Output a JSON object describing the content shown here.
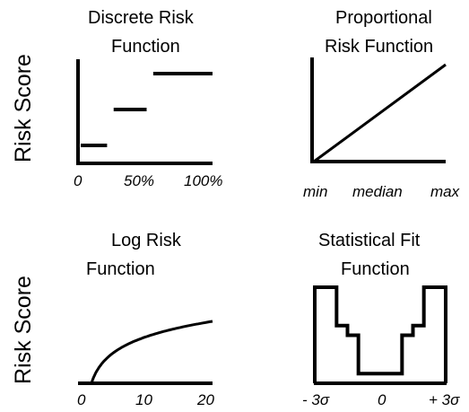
{
  "y_axis_label": "Risk Score",
  "panels": {
    "discrete": {
      "title_line1": "Discrete Risk",
      "title_line2": "Function",
      "ticks": [
        "0",
        "50%",
        "100%"
      ],
      "chart_data": {
        "type": "step",
        "segments": [
          {
            "x_start": 0,
            "x_end": 20,
            "level": 1
          },
          {
            "x_start": 25,
            "x_end": 50,
            "level": 3
          },
          {
            "x_start": 55,
            "x_end": 100,
            "level": 5
          }
        ]
      }
    },
    "proportional": {
      "title_line1": "Proportional",
      "title_line2": "Risk Function",
      "ticks": [
        "min",
        "median",
        "max"
      ],
      "chart_data": {
        "type": "line",
        "x": [
          0,
          1
        ],
        "y": [
          0,
          1
        ]
      }
    },
    "log": {
      "title_line1": "Log Risk",
      "title_line2": "Function",
      "ticks": [
        "0",
        "10",
        "20"
      ],
      "chart_data": {
        "type": "line",
        "x_range": [
          0,
          20
        ],
        "curve": "log",
        "x_zero": 2
      }
    },
    "statistical": {
      "title_line1": "Statistical Fit",
      "title_line2": "Function",
      "ticks": [
        "- 3σ",
        "0",
        "+ 3σ"
      ],
      "chart_data": {
        "type": "step",
        "x": [
          -3,
          -2,
          -1.5,
          -1,
          1,
          1.5,
          2,
          3
        ],
        "levels": [
          5,
          3,
          2.5,
          0.5,
          2.5,
          3,
          5
        ]
      }
    }
  }
}
